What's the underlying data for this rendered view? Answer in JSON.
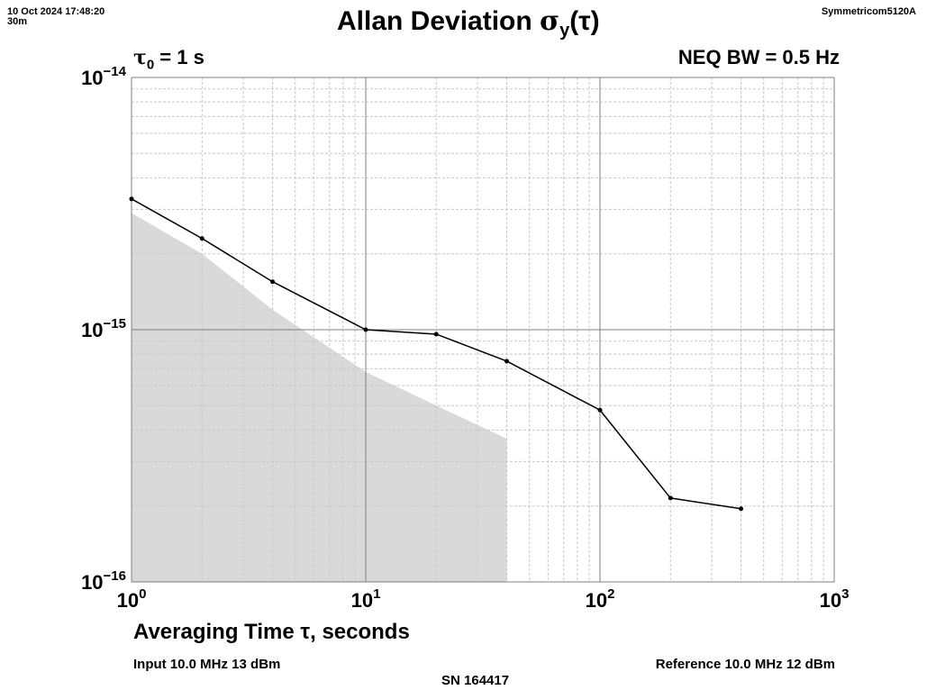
{
  "header": {
    "timestamp": "10 Oct 2024 17:48:20",
    "duration": "30m",
    "instrument": "Symmetricom5120A"
  },
  "labels": {
    "title_main": "Allan Deviation ",
    "title_sigma": "σ",
    "title_sub": "y",
    "title_tail": "(τ)",
    "tau0_symbol": "τ",
    "tau0_sub": "0",
    "tau0_value": " = 1 s",
    "neq_bw": "NEQ BW = 0.5 Hz",
    "xlabel": "Averaging Time τ, seconds",
    "input": "Input 10.0 MHz 13 dBm",
    "reference": "Reference 10.0 MHz 12 dBm",
    "serial": "SN 164417"
  },
  "chart_data": {
    "type": "line",
    "xscale": "log",
    "yscale": "log",
    "xlim": [
      1,
      1000
    ],
    "ylim": [
      1e-16,
      1e-14
    ],
    "grid": true,
    "x_ticks": [
      {
        "base": "10",
        "exp": "0"
      },
      {
        "base": "10",
        "exp": "1"
      },
      {
        "base": "10",
        "exp": "2"
      },
      {
        "base": "10",
        "exp": "3"
      }
    ],
    "y_ticks": [
      {
        "base": "10",
        "exp": "−14"
      },
      {
        "base": "10",
        "exp": "−15"
      },
      {
        "base": "10",
        "exp": "−16"
      }
    ],
    "series": [
      {
        "values_x": [
          1,
          2,
          4,
          10,
          20,
          40,
          100,
          200,
          400
        ],
        "values_y": [
          3.3e-15,
          2.3e-15,
          1.55e-15,
          1e-15,
          9.6e-16,
          7.5e-16,
          4.8e-16,
          2.15e-16,
          1.95e-16
        ],
        "color": "#000000"
      }
    ],
    "shaded_region": {
      "x": [
        1,
        2,
        4,
        10,
        20,
        40
      ],
      "y": [
        2.9e-15,
        2e-15,
        1.2e-15,
        6.8e-16,
        5e-16,
        3.7e-16
      ],
      "color": "#d9d9d9"
    }
  }
}
